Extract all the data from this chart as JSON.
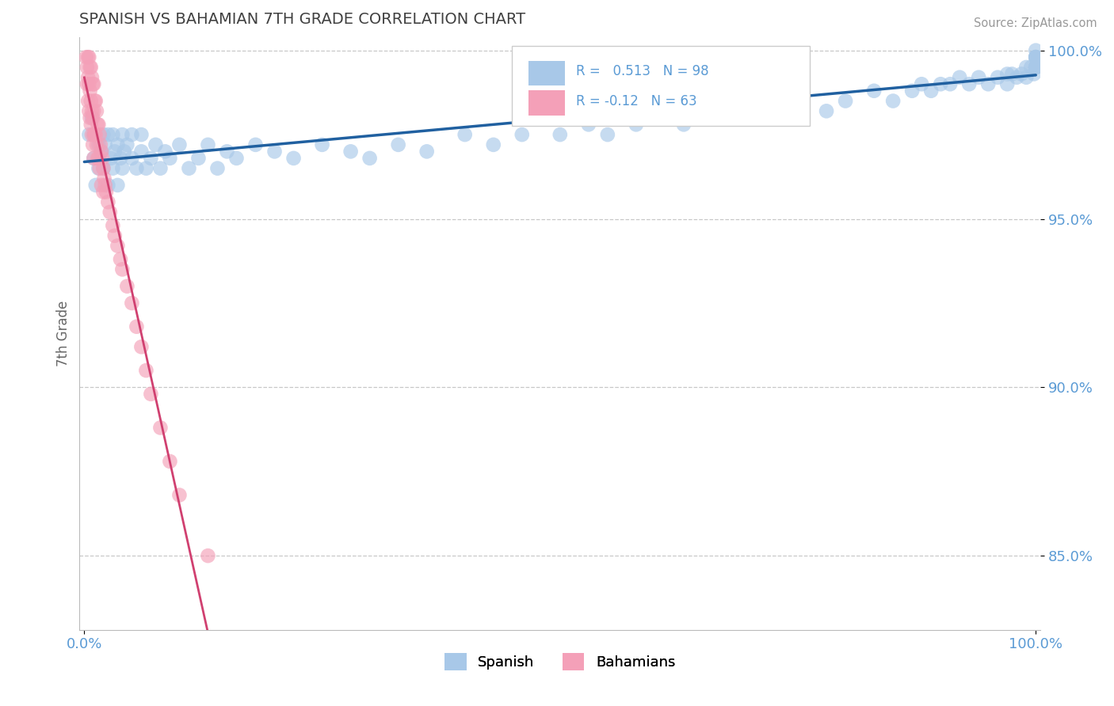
{
  "title": "SPANISH VS BAHAMIAN 7TH GRADE CORRELATION CHART",
  "source": "Source: ZipAtlas.com",
  "ylabel": "7th Grade",
  "legend_labels": [
    "Spanish",
    "Bahamians"
  ],
  "r_spanish": 0.513,
  "n_spanish": 98,
  "r_bahamian": -0.12,
  "n_bahamian": 63,
  "blue_color": "#a8c8e8",
  "pink_color": "#f4a0b8",
  "blue_line_color": "#2060a0",
  "pink_line_color": "#d04070",
  "axis_label_color": "#5b9bd5",
  "title_color": "#404040",
  "grid_color": "#c8c8c8",
  "ylim_low": 0.828,
  "ylim_high": 1.004,
  "xlim_low": -0.005,
  "xlim_high": 1.005,
  "yticks": [
    0.85,
    0.9,
    0.95,
    1.0
  ],
  "ytick_labels": [
    "85.0%",
    "90.0%",
    "95.0%",
    "100.0%"
  ],
  "spanish_x": [
    0.005,
    0.008,
    0.01,
    0.01,
    0.012,
    0.015,
    0.015,
    0.018,
    0.02,
    0.02,
    0.022,
    0.025,
    0.025,
    0.028,
    0.03,
    0.03,
    0.032,
    0.035,
    0.035,
    0.038,
    0.04,
    0.04,
    0.042,
    0.045,
    0.05,
    0.05,
    0.055,
    0.06,
    0.06,
    0.065,
    0.07,
    0.075,
    0.08,
    0.085,
    0.09,
    0.1,
    0.11,
    0.12,
    0.13,
    0.14,
    0.15,
    0.16,
    0.18,
    0.2,
    0.22,
    0.25,
    0.28,
    0.3,
    0.33,
    0.36,
    0.4,
    0.43,
    0.46,
    0.5,
    0.53,
    0.55,
    0.58,
    0.6,
    0.63,
    0.65,
    0.68,
    0.7,
    0.73,
    0.75,
    0.78,
    0.8,
    0.83,
    0.85,
    0.87,
    0.88,
    0.89,
    0.9,
    0.91,
    0.92,
    0.93,
    0.94,
    0.95,
    0.96,
    0.97,
    0.97,
    0.975,
    0.98,
    0.985,
    0.99,
    0.99,
    0.995,
    0.998,
    1.0,
    1.0,
    1.0,
    1.0,
    1.0,
    1.0,
    1.0,
    1.0,
    1.0,
    1.0,
    1.0
  ],
  "spanish_y": [
    0.975,
    0.98,
    0.968,
    0.975,
    0.96,
    0.972,
    0.965,
    0.97,
    0.975,
    0.965,
    0.972,
    0.975,
    0.96,
    0.968,
    0.975,
    0.965,
    0.97,
    0.972,
    0.96,
    0.968,
    0.975,
    0.965,
    0.97,
    0.972,
    0.968,
    0.975,
    0.965,
    0.97,
    0.975,
    0.965,
    0.968,
    0.972,
    0.965,
    0.97,
    0.968,
    0.972,
    0.965,
    0.968,
    0.972,
    0.965,
    0.97,
    0.968,
    0.972,
    0.97,
    0.968,
    0.972,
    0.97,
    0.968,
    0.972,
    0.97,
    0.975,
    0.972,
    0.975,
    0.975,
    0.978,
    0.975,
    0.978,
    0.98,
    0.978,
    0.98,
    0.982,
    0.98,
    0.982,
    0.985,
    0.982,
    0.985,
    0.988,
    0.985,
    0.988,
    0.99,
    0.988,
    0.99,
    0.99,
    0.992,
    0.99,
    0.992,
    0.99,
    0.992,
    0.993,
    0.99,
    0.993,
    0.992,
    0.993,
    0.995,
    0.992,
    0.995,
    0.993,
    0.995,
    0.998,
    0.995,
    0.995,
    0.998,
    0.995,
    0.998,
    0.995,
    0.998,
    1.0,
    0.998
  ],
  "bahamian_x": [
    0.002,
    0.003,
    0.003,
    0.004,
    0.004,
    0.004,
    0.005,
    0.005,
    0.005,
    0.006,
    0.006,
    0.006,
    0.007,
    0.007,
    0.007,
    0.008,
    0.008,
    0.008,
    0.009,
    0.009,
    0.009,
    0.01,
    0.01,
    0.01,
    0.01,
    0.011,
    0.011,
    0.012,
    0.012,
    0.013,
    0.013,
    0.014,
    0.014,
    0.015,
    0.015,
    0.016,
    0.016,
    0.017,
    0.018,
    0.018,
    0.019,
    0.02,
    0.02,
    0.021,
    0.022,
    0.023,
    0.025,
    0.027,
    0.03,
    0.032,
    0.035,
    0.038,
    0.04,
    0.045,
    0.05,
    0.055,
    0.06,
    0.065,
    0.07,
    0.08,
    0.09,
    0.1,
    0.13
  ],
  "bahamian_y": [
    0.998,
    0.995,
    0.99,
    0.998,
    0.992,
    0.985,
    0.998,
    0.99,
    0.982,
    0.995,
    0.988,
    0.98,
    0.995,
    0.985,
    0.978,
    0.992,
    0.982,
    0.975,
    0.99,
    0.98,
    0.972,
    0.99,
    0.982,
    0.975,
    0.968,
    0.985,
    0.975,
    0.985,
    0.975,
    0.982,
    0.972,
    0.978,
    0.968,
    0.978,
    0.968,
    0.975,
    0.965,
    0.972,
    0.97,
    0.96,
    0.968,
    0.965,
    0.958,
    0.962,
    0.96,
    0.958,
    0.955,
    0.952,
    0.948,
    0.945,
    0.942,
    0.938,
    0.935,
    0.93,
    0.925,
    0.918,
    0.912,
    0.905,
    0.898,
    0.888,
    0.878,
    0.868,
    0.85
  ]
}
